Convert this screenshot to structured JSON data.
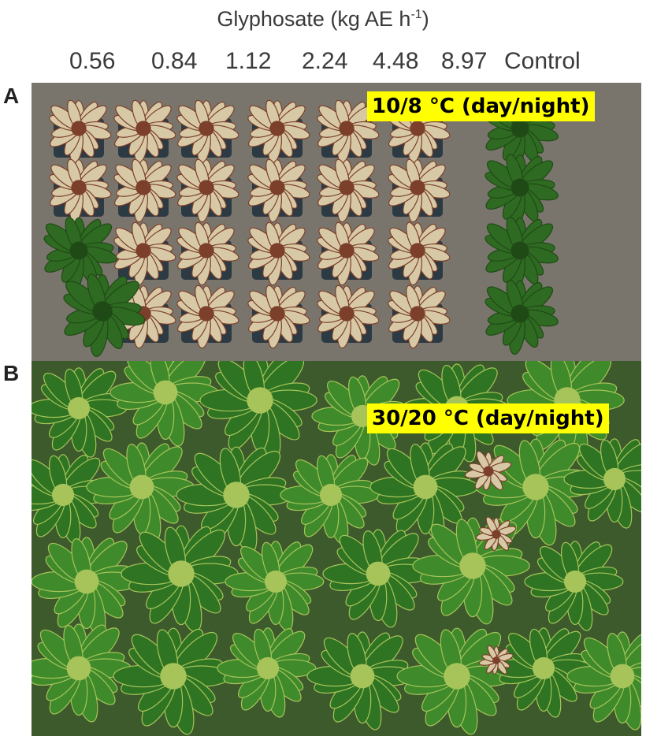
{
  "figure": {
    "title_prefix": "Glyphosate (kg AE h",
    "title_sup": "-1",
    "title_suffix": ")"
  },
  "dose_labels": [
    "0.56",
    "0.84",
    "1.12",
    "2.24",
    "4.48",
    "8.97",
    "Control"
  ],
  "panels": [
    {
      "letter": "A",
      "temperature": "10/8 °C (day/night)"
    },
    {
      "letter": "B",
      "temperature": "30/20 °C (day/night)"
    }
  ],
  "colors": {
    "highlight": "#ffff00",
    "damaged_leaf": "#d8c9a6",
    "damaged_center": "#7b3f2a",
    "healthy_leaf": "#2f6a22",
    "pot": "#2c3a44"
  }
}
